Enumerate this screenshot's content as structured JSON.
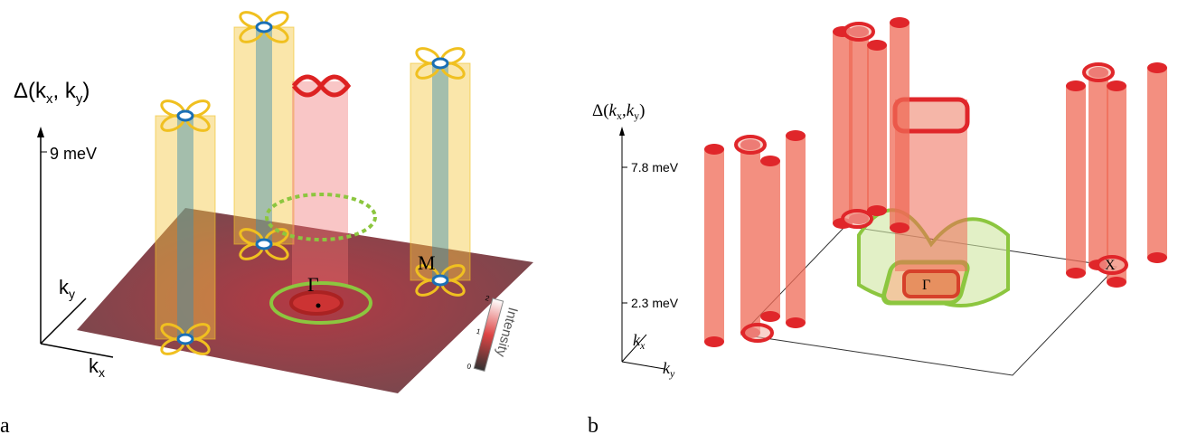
{
  "panel_a": {
    "label": "a",
    "axis_label": [
      "Δ(k",
      "x",
      ", k",
      "y",
      ")"
    ],
    "energy_tick": "9 meV",
    "kx_label": [
      "k",
      "x"
    ],
    "ky_label": [
      "k",
      "y"
    ],
    "gamma": "Γ",
    "m_point": "M",
    "colorbar_label": "Intensity",
    "colorbar_ticks": [
      "0",
      "1",
      "2"
    ]
  },
  "panel_b": {
    "label": "b",
    "axis_label": [
      "Δ(",
      "k",
      "x",
      ",",
      "k",
      "y",
      ")"
    ],
    "energy_ticks": [
      "7.8 meV",
      "2.3 meV"
    ],
    "kx_label": [
      "k",
      "x"
    ],
    "ky_label": [
      "k",
      "y"
    ],
    "gamma": "Γ",
    "x_point": "X"
  }
}
